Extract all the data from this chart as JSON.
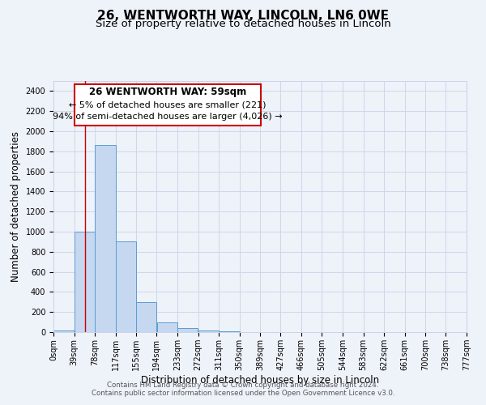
{
  "title": "26, WENTWORTH WAY, LINCOLN, LN6 0WE",
  "subtitle": "Size of property relative to detached houses in Lincoln",
  "xlabel": "Distribution of detached houses by size in Lincoln",
  "ylabel": "Number of detached properties",
  "footer_line1": "Contains HM Land Registry data © Crown copyright and database right 2024.",
  "footer_line2": "Contains public sector information licensed under the Open Government Licence v3.0.",
  "bin_labels": [
    "0sqm",
    "39sqm",
    "78sqm",
    "117sqm",
    "155sqm",
    "194sqm",
    "233sqm",
    "272sqm",
    "311sqm",
    "350sqm",
    "389sqm",
    "427sqm",
    "466sqm",
    "505sqm",
    "544sqm",
    "583sqm",
    "622sqm",
    "661sqm",
    "700sqm",
    "738sqm",
    "777sqm"
  ],
  "bin_edges": [
    0,
    39,
    78,
    117,
    155,
    194,
    233,
    272,
    311,
    350,
    389,
    427,
    466,
    505,
    544,
    583,
    622,
    661,
    700,
    738,
    777
  ],
  "bar_values": [
    20,
    1000,
    1860,
    900,
    300,
    100,
    40,
    20,
    5,
    0,
    0,
    0,
    0,
    0,
    0,
    0,
    0,
    0,
    0,
    0
  ],
  "bar_facecolor": "#c5d8f0",
  "bar_edgecolor": "#5b9bd5",
  "property_line_x": 59,
  "property_line_color": "#cc0000",
  "annotation_title": "26 WENTWORTH WAY: 59sqm",
  "annotation_line1": "← 5% of detached houses are smaller (221)",
  "annotation_line2": "94% of semi-detached houses are larger (4,026) →",
  "ylim": [
    0,
    2500
  ],
  "xlim": [
    0,
    777
  ],
  "background_color": "#eef2f9",
  "grid_color": "#c8d4e8",
  "title_fontsize": 11,
  "subtitle_fontsize": 9.5,
  "axis_label_fontsize": 8.5,
  "tick_fontsize": 7
}
